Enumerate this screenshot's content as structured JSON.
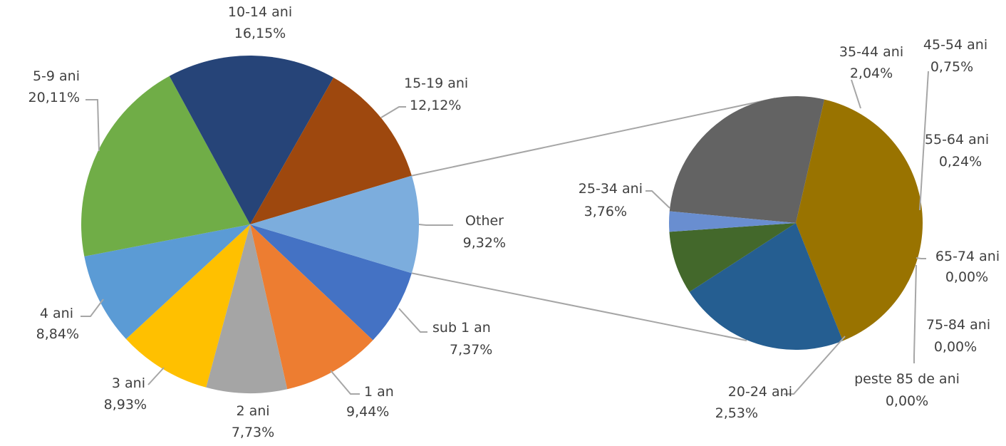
{
  "chart_data": {
    "type": "pie-of-pie",
    "main_pie": {
      "slices": [
        {
          "label": "sub 1 an",
          "percent_label": "7,37%",
          "value": 7.37,
          "color": "#4472c4"
        },
        {
          "label": "1 an",
          "percent_label": "9,44%",
          "value": 9.44,
          "color": "#ed7d31"
        },
        {
          "label": "2 ani",
          "percent_label": "7,73%",
          "value": 7.73,
          "color": "#a5a5a5"
        },
        {
          "label": "3 ani",
          "percent_label": "8,93%",
          "value": 8.93,
          "color": "#ffc000"
        },
        {
          "label": "4 ani",
          "percent_label": "8,84%",
          "value": 8.84,
          "color": "#5b9bd5"
        },
        {
          "label": "5-9 ani",
          "percent_label": "20,11%",
          "value": 20.11,
          "color": "#70ad47"
        },
        {
          "label": "10-14 ani",
          "percent_label": "16,15%",
          "value": 16.15,
          "color": "#264478"
        },
        {
          "label": "15-19 ani",
          "percent_label": "12,12%",
          "value": 12.12,
          "color": "#9e480e"
        },
        {
          "label": "Other",
          "percent_label": "9,32%",
          "value": 9.32,
          "color": "#7caddd"
        }
      ]
    },
    "secondary_pie": {
      "slices": [
        {
          "label": "20-24 ani",
          "percent_label": "2,53%",
          "value": 2.53,
          "color": "#636363"
        },
        {
          "label": "25-34 ani",
          "percent_label": "3,76%",
          "value": 3.76,
          "color": "#997300"
        },
        {
          "label": "35-44 ani",
          "percent_label": "2,04%",
          "value": 2.04,
          "color": "#255e91"
        },
        {
          "label": "45-54 ani",
          "percent_label": "0,75%",
          "value": 0.75,
          "color": "#43682b"
        },
        {
          "label": "55-64 ani",
          "percent_label": "0,24%",
          "value": 0.24,
          "color": "#698ed0"
        },
        {
          "label": "65-74 ani",
          "percent_label": "0,00%",
          "value": 0.0,
          "color": "#f1975a"
        },
        {
          "label": "75-84 ani",
          "percent_label": "0,00%",
          "value": 0.0,
          "color": "#b7b7b7"
        },
        {
          "label": "peste 85 de ani",
          "percent_label": "0,00%",
          "value": 0.0,
          "color": "#ffcd33"
        }
      ]
    },
    "legend": "none"
  }
}
